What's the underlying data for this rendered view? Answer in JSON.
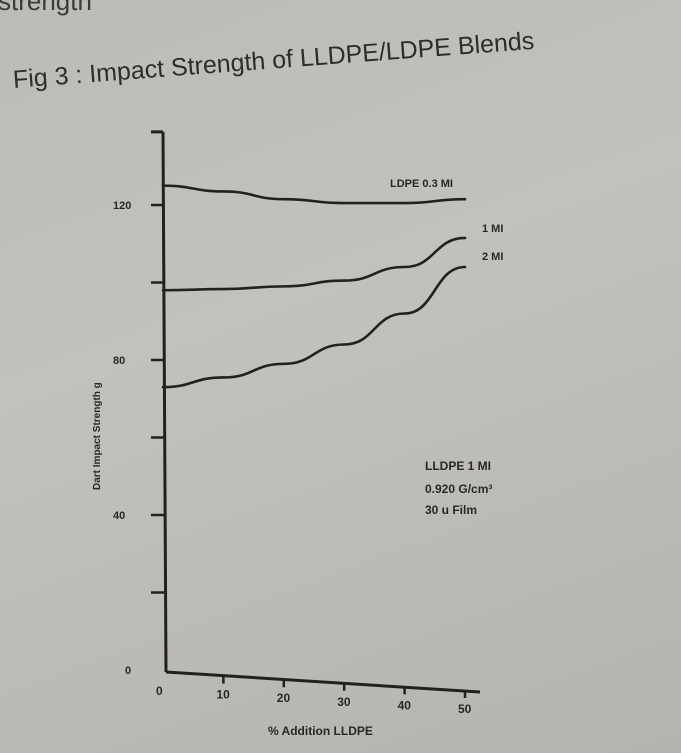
{
  "page": {
    "top_text": "strength",
    "figure_title": "Fig 3 : Impact Strength of LLDPE/LDPE Blends"
  },
  "chart_data": {
    "type": "line",
    "title": "Impact Strength of LLDPE/LDPE Blends",
    "xlabel": "% Addition LLDPE",
    "ylabel": "Dart Impact Strength g",
    "xlim": [
      0,
      50
    ],
    "ylim": [
      0,
      135
    ],
    "x_ticks": [
      0,
      10,
      20,
      30,
      40,
      50
    ],
    "y_ticks": [
      0,
      20,
      40,
      60,
      80,
      100,
      120
    ],
    "y_tick_labels": [
      "0",
      "40",
      "80",
      "120"
    ],
    "grid": false,
    "x": [
      0,
      10,
      20,
      30,
      40,
      50
    ],
    "series": [
      {
        "name": "LDPE 0.3 MI",
        "label": "LDPE  0.3 MI",
        "values": [
          125,
          123.5,
          121.5,
          120.5,
          120.5,
          121.5
        ]
      },
      {
        "name": "1 MI",
        "label": "1 MI",
        "values": [
          98,
          98.3,
          99,
          100.5,
          104,
          111.5
        ]
      },
      {
        "name": "2 MI",
        "label": "2 MI",
        "values": [
          73,
          75.5,
          79,
          84,
          92,
          104
        ]
      }
    ],
    "annotation": [
      "LLDPE 1 MI",
      "0.920 G/cm³",
      "30 u Film"
    ]
  }
}
